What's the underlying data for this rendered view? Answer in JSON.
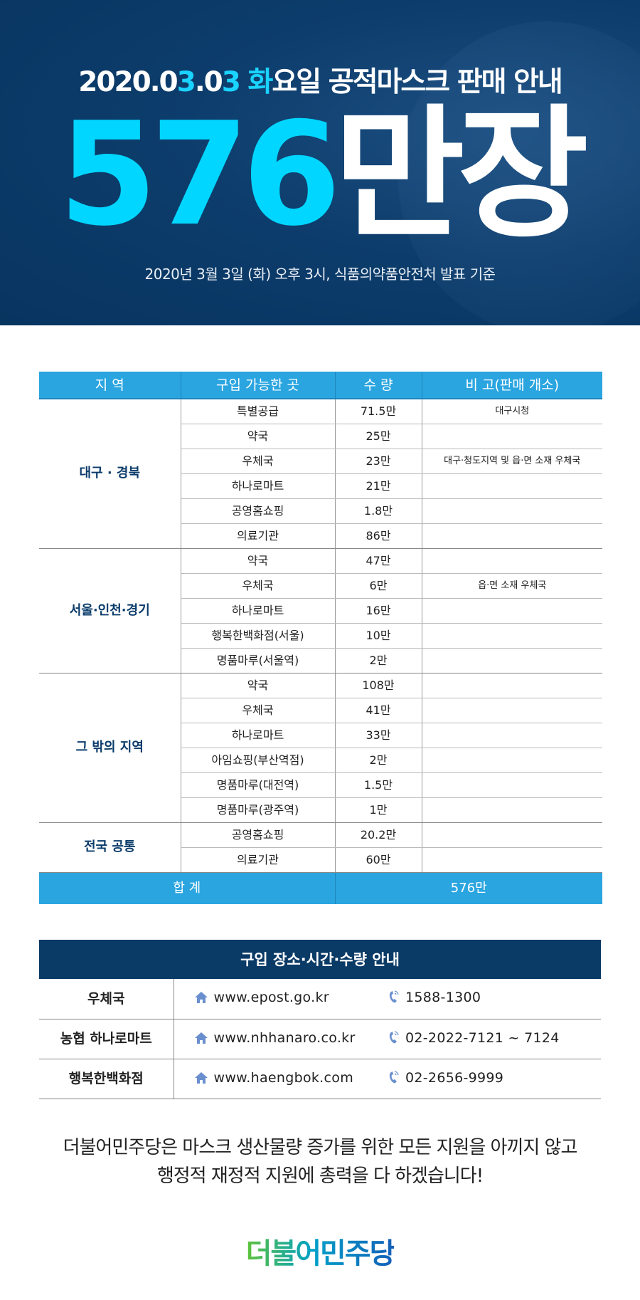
{
  "hero": {
    "title_parts": [
      {
        "t": "2020.0",
        "c": false
      },
      {
        "t": "3",
        "c": true
      },
      {
        "t": ".0",
        "c": false
      },
      {
        "t": "3",
        "c": true
      },
      {
        "t": " ",
        "c": false
      },
      {
        "t": "화",
        "c": true
      },
      {
        "t": "요일 공적마스크 판매 안내",
        "c": false
      }
    ],
    "big_number": "576",
    "big_unit": "만장",
    "subtitle": "2020년 3월 3일 (화) 오후 3시, 식품의약품안전처 발표 기준"
  },
  "colors": {
    "accent_cyan": "#00d6ff",
    "header_blue": "#2aa5e0",
    "navy": "#0a3a66"
  },
  "supply_table": {
    "headers": [
      "지 역",
      "구입 가능한 곳",
      "수 량",
      "비 고(판매 개소)"
    ],
    "groups": [
      {
        "region": "대구 · 경북",
        "rows": [
          [
            "특별공급",
            "71.5만",
            "대구시청"
          ],
          [
            "약국",
            "25만",
            ""
          ],
          [
            "우체국",
            "23만",
            "대구·청도지역 및 읍·면 소재 우체국"
          ],
          [
            "하나로마트",
            "21만",
            ""
          ],
          [
            "공영홈쇼핑",
            "1.8만",
            ""
          ],
          [
            "의료기관",
            "86만",
            ""
          ]
        ]
      },
      {
        "region": "서울·인천·경기",
        "rows": [
          [
            "약국",
            "47만",
            ""
          ],
          [
            "우체국",
            "6만",
            "읍·면 소재 우체국"
          ],
          [
            "하나로마트",
            "16만",
            ""
          ],
          [
            "행복한백화점(서울)",
            "10만",
            ""
          ],
          [
            "명품마루(서울역)",
            "2만",
            ""
          ]
        ]
      },
      {
        "region": "그 밖의 지역",
        "rows": [
          [
            "약국",
            "108만",
            ""
          ],
          [
            "우체국",
            "41만",
            ""
          ],
          [
            "하나로마트",
            "33만",
            ""
          ],
          [
            "아임쇼핑(부산역점)",
            "2만",
            ""
          ],
          [
            "명품마루(대전역)",
            "1.5만",
            ""
          ],
          [
            "명품마루(광주역)",
            "1만",
            ""
          ]
        ]
      },
      {
        "region": "전국 공통",
        "rows": [
          [
            "공영홈쇼핑",
            "20.2만",
            ""
          ],
          [
            "의료기관",
            "60만",
            ""
          ]
        ]
      }
    ],
    "total_label": "합 계",
    "total_value": "576만"
  },
  "contact_table": {
    "title": "구입 장소·시간·수량 안내",
    "rows": [
      {
        "name": "우체국",
        "url": "www.epost.go.kr",
        "tel": "1588-1300"
      },
      {
        "name": "농협 하나로마트",
        "url": "www.nhhanaro.co.kr",
        "tel": "02-2022-7121 ~ 7124"
      },
      {
        "name": "행복한백화점",
        "url": "www.haengbok.com",
        "tel": "02-2656-9999"
      }
    ]
  },
  "message": {
    "line1": "더불어민주당은 마스크 생산물량 증가를 위한 모든 지원을 아끼지 않고",
    "line2": "행정적 재정적 지원에 총력을 다 하겠습니다!"
  },
  "logo": {
    "text": "더불어민주당"
  }
}
